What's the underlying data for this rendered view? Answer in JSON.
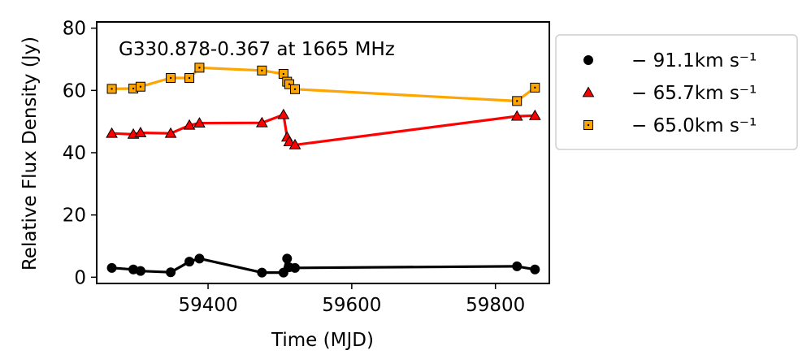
{
  "chart_data": {
    "type": "line",
    "title": "G330.878-0.367 at 1665 MHz",
    "xlabel": "Time (MJD)",
    "ylabel": "Relative Flux Density (Jy)",
    "xlim": [
      59245,
      59875
    ],
    "ylim": [
      -2,
      82
    ],
    "xticks": [
      59400,
      59600,
      59800
    ],
    "yticks": [
      0,
      20,
      40,
      60,
      80
    ],
    "x": [
      59266,
      59296,
      59306,
      59348,
      59374,
      59388,
      59475,
      59505,
      59510,
      59513,
      59521,
      59830,
      59855
    ],
    "legend_position": "outside-right",
    "series": [
      {
        "name": "− 91.1km s⁻¹",
        "marker": "circle",
        "color": "#000000",
        "values": [
          3.0,
          2.5,
          2.0,
          1.6,
          5.0,
          6.0,
          1.5,
          1.5,
          6.0,
          3.2,
          3.0,
          3.5,
          2.5
        ]
      },
      {
        "name": "− 65.7km s⁻¹",
        "marker": "triangle",
        "color": "#ff0000",
        "values": [
          46.2,
          45.9,
          46.4,
          46.2,
          48.8,
          49.5,
          49.6,
          52.2,
          45.0,
          43.5,
          42.5,
          51.7,
          51.9
        ]
      },
      {
        "name": "− 65.0km s⁻¹",
        "marker": "square",
        "color": "#ffa500",
        "values": [
          60.5,
          60.6,
          61.2,
          64.0,
          64.0,
          67.3,
          66.4,
          65.3,
          62.8,
          62.0,
          60.4,
          56.6,
          60.9
        ]
      }
    ]
  }
}
